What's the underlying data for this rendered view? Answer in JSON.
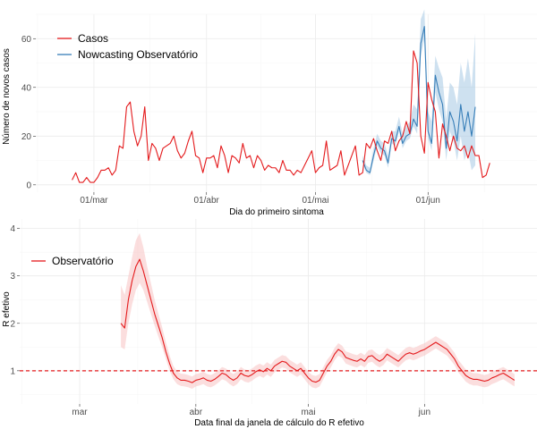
{
  "chart_data": [
    {
      "type": "line",
      "xlabel": "Dia do primeiro sintoma",
      "ylabel": "Número de novos casos",
      "x_ticks": [
        {
          "date": "2020-03-01",
          "label": "01/mar"
        },
        {
          "date": "2020-04-01",
          "label": "01/abr"
        },
        {
          "date": "2020-05-01",
          "label": "01/mai"
        },
        {
          "date": "2020-06-01",
          "label": "01/jun"
        }
      ],
      "y_ticks": [
        0,
        20,
        40,
        60
      ],
      "xlim": [
        "2020-02-14",
        "2020-07-01"
      ],
      "ylim": [
        -3,
        70
      ],
      "legend": {
        "position": "top-left",
        "entries": [
          "Casos",
          "Nowcasting Observatório"
        ]
      },
      "series": [
        {
          "name": "Casos",
          "color": "#e41a1c",
          "start": "2020-02-24",
          "values": [
            2,
            5,
            1,
            1,
            3,
            1,
            1,
            3,
            6,
            6,
            7,
            4,
            6,
            16,
            15,
            32,
            34,
            22,
            16,
            20,
            32,
            10,
            17,
            15,
            10,
            15,
            16,
            17,
            20,
            14,
            11,
            13,
            18,
            22,
            12,
            11,
            5,
            11,
            11,
            12,
            7,
            16,
            12,
            5,
            12,
            11,
            9,
            17,
            11,
            12,
            7,
            12,
            10,
            6,
            8,
            7,
            7,
            5,
            10,
            6,
            6,
            4,
            6,
            5,
            8,
            11,
            14,
            5,
            7,
            8,
            18,
            6,
            7,
            8,
            14,
            4,
            8,
            12,
            16,
            4,
            5,
            17,
            15,
            19,
            14,
            10,
            18,
            17,
            22,
            14,
            18,
            20,
            26,
            21,
            55,
            50,
            20,
            13,
            42,
            35,
            30,
            11,
            25,
            20,
            14,
            20,
            15,
            14,
            16,
            11,
            16,
            12,
            12,
            3,
            4,
            9
          ]
        },
        {
          "name": "Nowcasting Observatório",
          "color": "#377eb8",
          "start": "2020-05-14",
          "values": [
            10,
            6,
            5,
            12,
            18,
            15,
            14,
            9,
            19,
            18,
            24,
            17,
            20,
            21,
            27,
            24,
            58,
            65,
            22,
            17,
            45,
            38,
            33,
            15,
            30,
            26,
            18,
            33,
            22,
            30,
            20,
            32
          ]
        }
      ],
      "band": {
        "color": "#a6c8e4",
        "start": "2020-05-14",
        "lower": [
          9,
          5,
          4,
          10,
          16,
          13,
          12,
          7,
          17,
          16,
          22,
          15,
          18,
          19,
          24,
          21,
          53,
          60,
          19,
          14,
          38,
          31,
          26,
          10,
          22,
          18,
          10,
          20,
          10,
          14,
          6,
          8
        ],
        "upper": [
          12,
          8,
          7,
          15,
          21,
          18,
          17,
          12,
          22,
          22,
          28,
          21,
          24,
          26,
          33,
          31,
          68,
          72,
          30,
          26,
          53,
          48,
          44,
          27,
          42,
          40,
          33,
          50,
          42,
          52,
          40,
          62
        ]
      }
    },
    {
      "type": "line",
      "xlabel": "Data final da janela de cálculo do R efetivo",
      "ylabel": "R efetivo",
      "x_ticks": [
        {
          "date": "2020-03-01",
          "label": "mar"
        },
        {
          "date": "2020-04-01",
          "label": "abr"
        },
        {
          "date": "2020-05-01",
          "label": "mai"
        },
        {
          "date": "2020-06-01",
          "label": "jun"
        }
      ],
      "y_ticks": [
        1,
        2,
        3,
        4
      ],
      "xlim": [
        "2020-02-14",
        "2020-07-01"
      ],
      "ylim": [
        0.3,
        4.2
      ],
      "reference_line": {
        "y": 1,
        "style": "dashed",
        "color": "#e41a1c"
      },
      "legend": {
        "position": "top-left",
        "entries": [
          "Observatório"
        ]
      },
      "series": [
        {
          "name": "Observatório",
          "color": "#e41a1c",
          "start": "2020-03-12",
          "values": [
            2.0,
            1.9,
            2.5,
            2.9,
            3.2,
            3.35,
            3.1,
            2.8,
            2.5,
            2.2,
            1.95,
            1.7,
            1.4,
            1.15,
            0.95,
            0.85,
            0.8,
            0.8,
            0.78,
            0.75,
            0.8,
            0.82,
            0.85,
            0.8,
            0.78,
            0.82,
            0.88,
            0.95,
            0.92,
            0.85,
            0.8,
            0.85,
            0.95,
            0.9,
            0.88,
            0.92,
            0.98,
            1.02,
            0.98,
            1.05,
            1.0,
            1.1,
            1.15,
            1.2,
            1.18,
            1.1,
            1.05,
            1.0,
            1.05,
            0.95,
            0.85,
            0.78,
            0.76,
            0.8,
            0.95,
            1.1,
            1.2,
            1.35,
            1.45,
            1.4,
            1.28,
            1.25,
            1.22,
            1.2,
            1.25,
            1.2,
            1.3,
            1.32,
            1.25,
            1.2,
            1.25,
            1.35,
            1.3,
            1.25,
            1.2,
            1.28,
            1.35,
            1.38,
            1.35,
            1.38,
            1.42,
            1.45,
            1.5,
            1.55,
            1.6,
            1.55,
            1.5,
            1.45,
            1.35,
            1.25,
            1.1,
            1.0,
            0.9,
            0.85,
            0.82,
            0.82,
            0.8,
            0.78,
            0.8,
            0.85,
            0.88,
            0.92,
            0.95,
            0.9,
            0.85,
            0.8
          ]
        }
      ],
      "band": {
        "color": "#f8c3c3",
        "start": "2020-03-12",
        "lower": [
          1.5,
          1.45,
          2.0,
          2.4,
          2.7,
          2.85,
          2.7,
          2.45,
          2.2,
          1.95,
          1.72,
          1.5,
          1.25,
          1.0,
          0.82,
          0.72,
          0.68,
          0.67,
          0.65,
          0.62,
          0.67,
          0.69,
          0.72,
          0.67,
          0.65,
          0.69,
          0.75,
          0.82,
          0.79,
          0.72,
          0.67,
          0.72,
          0.82,
          0.77,
          0.75,
          0.79,
          0.85,
          0.89,
          0.85,
          0.92,
          0.87,
          0.97,
          1.02,
          1.07,
          1.05,
          0.97,
          0.92,
          0.87,
          0.92,
          0.82,
          0.72,
          0.65,
          0.63,
          0.67,
          0.82,
          0.97,
          1.07,
          1.22,
          1.32,
          1.27,
          1.15,
          1.12,
          1.09,
          1.07,
          1.12,
          1.07,
          1.17,
          1.19,
          1.12,
          1.07,
          1.12,
          1.22,
          1.17,
          1.12,
          1.07,
          1.15,
          1.22,
          1.25,
          1.22,
          1.25,
          1.29,
          1.32,
          1.37,
          1.42,
          1.47,
          1.42,
          1.37,
          1.32,
          1.22,
          1.12,
          0.97,
          0.87,
          0.77,
          0.72,
          0.69,
          0.69,
          0.67,
          0.65,
          0.67,
          0.72,
          0.75,
          0.79,
          0.82,
          0.77,
          0.72,
          0.67
        ],
        "upper": [
          2.8,
          2.6,
          3.0,
          3.4,
          3.75,
          3.9,
          3.6,
          3.2,
          2.85,
          2.5,
          2.2,
          1.92,
          1.6,
          1.32,
          1.1,
          0.99,
          0.94,
          0.93,
          0.91,
          0.88,
          0.93,
          0.95,
          0.98,
          0.93,
          0.91,
          0.95,
          1.01,
          1.08,
          1.05,
          0.98,
          0.93,
          0.98,
          1.08,
          1.03,
          1.01,
          1.05,
          1.11,
          1.15,
          1.11,
          1.18,
          1.13,
          1.23,
          1.28,
          1.33,
          1.31,
          1.23,
          1.18,
          1.13,
          1.18,
          1.08,
          0.98,
          0.91,
          0.89,
          0.93,
          1.08,
          1.23,
          1.33,
          1.48,
          1.58,
          1.53,
          1.41,
          1.38,
          1.35,
          1.33,
          1.38,
          1.33,
          1.43,
          1.45,
          1.38,
          1.33,
          1.38,
          1.48,
          1.43,
          1.38,
          1.33,
          1.41,
          1.48,
          1.51,
          1.48,
          1.51,
          1.55,
          1.58,
          1.63,
          1.68,
          1.73,
          1.68,
          1.63,
          1.58,
          1.48,
          1.38,
          1.23,
          1.13,
          1.03,
          0.98,
          0.95,
          0.95,
          0.93,
          0.91,
          0.93,
          0.98,
          1.01,
          1.05,
          1.08,
          1.03,
          0.98,
          0.93
        ]
      }
    }
  ]
}
